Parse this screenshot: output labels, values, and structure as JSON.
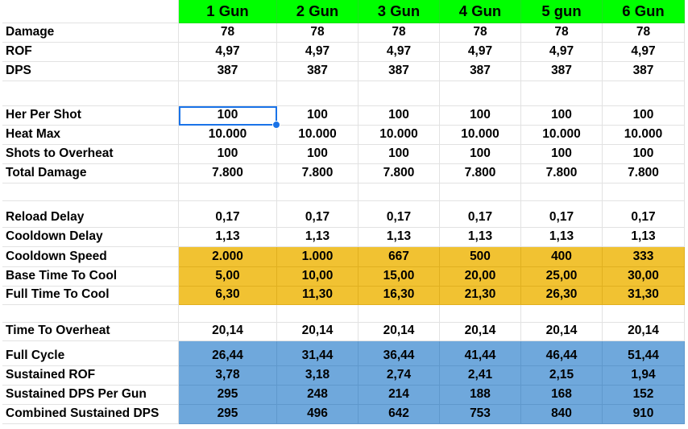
{
  "colors": {
    "header": "#00ff00",
    "cooldown_block": "#f1c232",
    "cycle_block": "#6fa8dc",
    "selection": "#1a73e8"
  },
  "columns": [
    "1 Gun",
    "2 Gun",
    "3 Gun",
    "4 Gun",
    "5 gun",
    "6 Gun"
  ],
  "rows": [
    {
      "label": "Damage",
      "values": [
        "78",
        "78",
        "78",
        "78",
        "78",
        "78"
      ]
    },
    {
      "label": "ROF",
      "values": [
        "4,97",
        "4,97",
        "4,97",
        "4,97",
        "4,97",
        "4,97"
      ]
    },
    {
      "label": "DPS",
      "values": [
        "387",
        "387",
        "387",
        "387",
        "387",
        "387"
      ]
    },
    {
      "label": "",
      "values": [
        "",
        "",
        "",
        "",
        "",
        ""
      ]
    },
    {
      "label": "Her Per Shot",
      "values": [
        "100",
        "100",
        "100",
        "100",
        "100",
        "100"
      ],
      "selected_col": 0
    },
    {
      "label": "Heat Max",
      "values": [
        "10.000",
        "10.000",
        "10.000",
        "10.000",
        "10.000",
        "10.000"
      ]
    },
    {
      "label": "Shots to Overheat",
      "values": [
        "100",
        "100",
        "100",
        "100",
        "100",
        "100"
      ]
    },
    {
      "label": "Total Damage",
      "values": [
        "7.800",
        "7.800",
        "7.800",
        "7.800",
        "7.800",
        "7.800"
      ]
    },
    {
      "label": "",
      "values": [
        "",
        "",
        "",
        "",
        "",
        ""
      ]
    },
    {
      "label": "Reload Delay",
      "values": [
        "0,17",
        "0,17",
        "0,17",
        "0,17",
        "0,17",
        "0,17"
      ]
    },
    {
      "label": "Cooldown Delay",
      "values": [
        "1,13",
        "1,13",
        "1,13",
        "1,13",
        "1,13",
        "1,13"
      ]
    },
    {
      "label": "Cooldown Speed",
      "values": [
        "2.000",
        "1.000",
        "667",
        "500",
        "400",
        "333"
      ],
      "fill": "orange"
    },
    {
      "label": "Base Time To Cool",
      "values": [
        "5,00",
        "10,00",
        "15,00",
        "20,00",
        "25,00",
        "30,00"
      ],
      "fill": "orange"
    },
    {
      "label": "Full Time To Cool",
      "values": [
        "6,30",
        "11,30",
        "16,30",
        "21,30",
        "26,30",
        "31,30"
      ],
      "fill": "orange"
    },
    {
      "label": "",
      "values": [
        "",
        "",
        "",
        "",
        "",
        ""
      ]
    },
    {
      "label": "Time To Overheat",
      "values": [
        "20,14",
        "20,14",
        "20,14",
        "20,14",
        "20,14",
        "20,14"
      ]
    },
    {
      "label": "Full Cycle",
      "values": [
        "26,44",
        "31,44",
        "36,44",
        "41,44",
        "46,44",
        "51,44"
      ],
      "fill": "blue"
    },
    {
      "label": "Sustained ROF",
      "values": [
        "3,78",
        "3,18",
        "2,74",
        "2,41",
        "2,15",
        "1,94"
      ],
      "fill": "blue"
    },
    {
      "label": "Sustained DPS Per Gun",
      "values": [
        "295",
        "248",
        "214",
        "188",
        "168",
        "152"
      ],
      "fill": "blue"
    },
    {
      "label": "Combined Sustained DPS",
      "values": [
        "295",
        "496",
        "642",
        "753",
        "840",
        "910"
      ],
      "fill": "blue"
    }
  ]
}
